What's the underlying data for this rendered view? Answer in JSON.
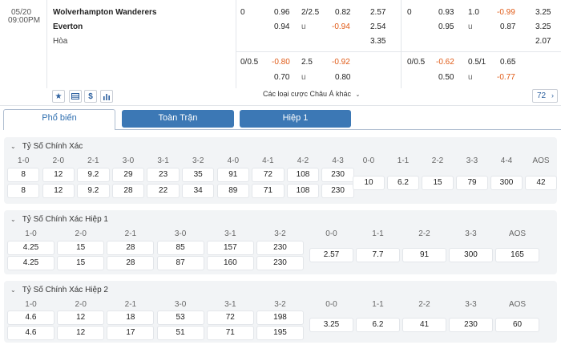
{
  "match": {
    "date": "05/20",
    "time": "09:00PM",
    "home": "Wolverhampton Wanderers",
    "away": "Everton",
    "draw": "Hòa"
  },
  "odds_top": {
    "ah_line": "0",
    "ah_home": "0.96",
    "ah_away": "0.94",
    "ou_line": "2/2.5",
    "ou_over": "0.82",
    "ou_under_label": "u",
    "ou_under": "-0.94",
    "x12_home": "2.57",
    "x12_away": "2.54",
    "x12_draw": "3.35",
    "ah2_line": "0",
    "ah2_home": "0.93",
    "ah2_away": "0.95",
    "ou2_line": "1.0",
    "ou2_over": "-0.99",
    "ou2_under_label": "u",
    "ou2_under": "0.87",
    "x2_home": "3.25",
    "x2_away": "3.25",
    "x2_draw": "2.07"
  },
  "odds_bottom": {
    "ah_line": "0/0.5",
    "ah_home": "-0.80",
    "ah_away": "0.70",
    "ou_line": "2.5",
    "ou_over": "-0.92",
    "ou_under_label": "u",
    "ou_under": "0.80",
    "ah2_line": "0/0.5",
    "ah2_home": "-0.62",
    "ah2_away": "0.50",
    "ou2_line": "0.5/1",
    "ou2_over": "0.65",
    "ou2_under_label": "u",
    "ou2_under": "-0.77"
  },
  "toolbar": {
    "more_bets": "Các loại cược Châu Á khác",
    "count": "72"
  },
  "tabs": [
    "Phổ biến",
    "Toàn Trận",
    "Hiệp 1"
  ],
  "sections": [
    {
      "title": "Tỷ Số Chính Xác",
      "left_headers": [
        "1-0",
        "2-0",
        "2-1",
        "3-0",
        "3-1",
        "3-2",
        "4-0",
        "4-1",
        "4-2",
        "4-3"
      ],
      "row1": [
        "8",
        "12",
        "9.2",
        "29",
        "23",
        "35",
        "91",
        "72",
        "108",
        "230"
      ],
      "row2": [
        "8",
        "12",
        "9.2",
        "28",
        "22",
        "34",
        "89",
        "71",
        "108",
        "230"
      ],
      "right_headers": [
        "0-0",
        "1-1",
        "2-2",
        "3-3",
        "4-4",
        "AOS"
      ],
      "right_values": [
        "10",
        "6.2",
        "15",
        "79",
        "300",
        "42"
      ]
    },
    {
      "title": "Tỷ Số Chính Xác Hiệp 1",
      "left_headers": [
        "1-0",
        "2-0",
        "2-1",
        "3-0",
        "3-1",
        "3-2"
      ],
      "row1": [
        "4.25",
        "15",
        "28",
        "85",
        "157",
        "230"
      ],
      "row2": [
        "4.25",
        "15",
        "28",
        "87",
        "160",
        "230"
      ],
      "right_headers": [
        "0-0",
        "1-1",
        "2-2",
        "3-3",
        "AOS"
      ],
      "right_values": [
        "2.57",
        "7.7",
        "91",
        "300",
        "165"
      ]
    },
    {
      "title": "Tỷ Số Chính Xác Hiệp 2",
      "left_headers": [
        "1-0",
        "2-0",
        "2-1",
        "3-0",
        "3-1",
        "3-2"
      ],
      "row1": [
        "4.6",
        "12",
        "18",
        "53",
        "72",
        "198"
      ],
      "row2": [
        "4.6",
        "12",
        "17",
        "51",
        "71",
        "195"
      ],
      "right_headers": [
        "0-0",
        "1-1",
        "2-2",
        "3-3",
        "AOS"
      ],
      "right_values": [
        "3.25",
        "6.2",
        "41",
        "230",
        "60"
      ]
    }
  ],
  "colors": {
    "accent": "#2f6fb0",
    "negative": "#e05a16",
    "panel": "#f2f4f6"
  }
}
